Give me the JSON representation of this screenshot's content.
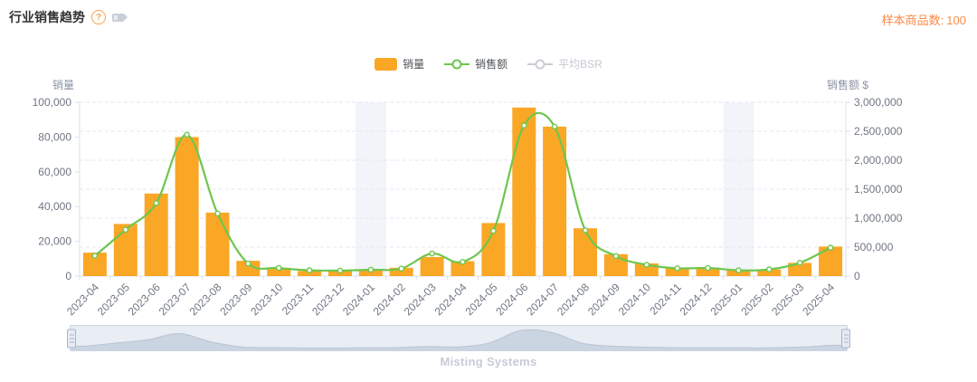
{
  "header": {
    "title": "行业销售趋势",
    "sample_label": "样本商品数:",
    "sample_value": "100"
  },
  "legend": {
    "items": [
      {
        "label": "销量",
        "type": "bar",
        "active": true
      },
      {
        "label": "销售额",
        "type": "line",
        "active": true
      },
      {
        "label": "平均BSR",
        "type": "line",
        "active": false
      }
    ]
  },
  "chart_data": {
    "type": "combo-bar-line",
    "categories": [
      "2023-04",
      "2023-05",
      "2023-06",
      "2023-07",
      "2023-08",
      "2023-09",
      "2023-10",
      "2023-11",
      "2023-12",
      "2024-01",
      "2024-02",
      "2024-03",
      "2024-04",
      "2024-05",
      "2024-06",
      "2024-07",
      "2024-08",
      "2024-09",
      "2024-10",
      "2024-11",
      "2024-12",
      "2025-01",
      "2025-02",
      "2025-03",
      "2025-04"
    ],
    "series": [
      {
        "name": "销量",
        "type": "bar",
        "axis": "left",
        "values": [
          13500,
          30000,
          47500,
          80000,
          36500,
          8800,
          4800,
          2900,
          3000,
          3400,
          4800,
          11000,
          8600,
          30500,
          97000,
          86000,
          27500,
          12600,
          7300,
          4500,
          4500,
          3300,
          3800,
          7600,
          17000
        ]
      },
      {
        "name": "销售额",
        "type": "line",
        "axis": "right",
        "values": [
          350000,
          800000,
          1260000,
          2440000,
          1080000,
          215000,
          140000,
          100000,
          95000,
          110000,
          130000,
          390000,
          245000,
          780000,
          2600000,
          2580000,
          790000,
          345000,
          195000,
          135000,
          140000,
          100000,
          115000,
          230000,
          490000
        ]
      },
      {
        "name": "平均BSR",
        "type": "line",
        "axis": "right",
        "visible": false
      }
    ],
    "y_left": {
      "name": "销量",
      "min": 0,
      "max": 100000,
      "interval": 20000,
      "ticks": [
        "0",
        "20,000",
        "40,000",
        "60,000",
        "80,000",
        "100,000"
      ]
    },
    "y_right": {
      "name": "销售额 $",
      "min": 0,
      "max": 3000000,
      "interval": 500000,
      "ticks": [
        "0",
        "500,000",
        "1,000,000",
        "1,500,000",
        "2,000,000",
        "2,500,000",
        "3,000,000"
      ]
    },
    "highlight_columns": [
      "2024-01",
      "2025-01"
    ],
    "legend_position": "top-center",
    "grid": "horizontal-dashed",
    "colors": {
      "bar": "#FAA726",
      "line": "#6EC64D",
      "band": "#F1F4F9",
      "grid": "#E3E7F0",
      "axis": "#DCE1EA",
      "tick": "#6F7683",
      "axis_name": "#8A93A3",
      "shadow_fill": "#CBD4E1",
      "shadow_line": "#B9C4D4",
      "disabled": "#C9CDD4"
    }
  },
  "slider": {
    "type": "datazoom",
    "range": "full"
  },
  "footer": {
    "label": "Misting Systems"
  }
}
